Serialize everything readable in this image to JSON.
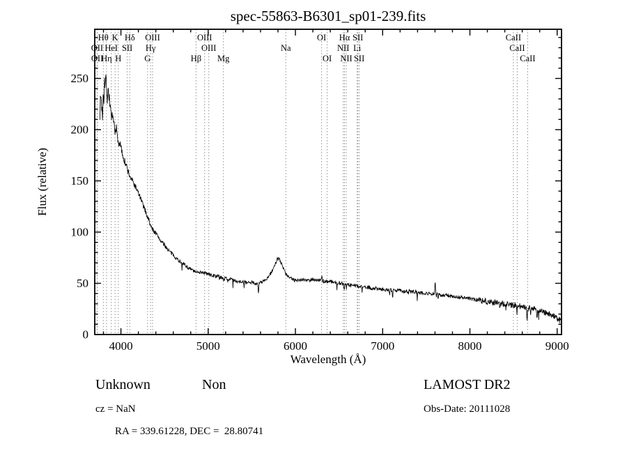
{
  "title": "spec-55863-B6301_sp01-239.fits",
  "chart_data": {
    "type": "line",
    "title": "spec-55863-B6301_sp01-239.fits",
    "xlabel": "Wavelength (Å)",
    "ylabel": "Flux (relative)",
    "xlim": [
      3700,
      9050
    ],
    "ylim": [
      0,
      298
    ],
    "xticks": [
      4000,
      5000,
      6000,
      7000,
      8000,
      9000
    ],
    "yticks": [
      0,
      50,
      100,
      150,
      200,
      250
    ],
    "x_minor_step": 200,
    "y_minor_step": 10,
    "grid": "dotted vertical lines at spectral-line wavelengths",
    "legend": "none",
    "line_color": "#000000",
    "gridline_color": "#8a8a8a",
    "series": [
      {
        "name": "spectrum",
        "envelope": [
          [
            3760,
            218
          ],
          [
            3770,
            235
          ],
          [
            3780,
            222
          ],
          [
            3790,
            212
          ],
          [
            3797,
            242
          ],
          [
            3805,
            228
          ],
          [
            3812,
            250
          ],
          [
            3820,
            244
          ],
          [
            3828,
            252
          ],
          [
            3836,
            238
          ],
          [
            3845,
            230
          ],
          [
            3852,
            240
          ],
          [
            3860,
            236
          ],
          [
            3870,
            228
          ],
          [
            3880,
            222
          ],
          [
            3890,
            214
          ],
          [
            3900,
            212
          ],
          [
            3910,
            208
          ],
          [
            3920,
            206
          ],
          [
            3933,
            195
          ],
          [
            3942,
            203
          ],
          [
            3950,
            200
          ],
          [
            3960,
            192
          ],
          [
            3970,
            186
          ],
          [
            3985,
            188
          ],
          [
            4000,
            182
          ],
          [
            4025,
            174
          ],
          [
            4050,
            167
          ],
          [
            4075,
            161
          ],
          [
            4100,
            155
          ],
          [
            4125,
            151
          ],
          [
            4150,
            147
          ],
          [
            4175,
            143
          ],
          [
            4200,
            138
          ],
          [
            4225,
            133
          ],
          [
            4250,
            127
          ],
          [
            4275,
            122
          ],
          [
            4300,
            116
          ],
          [
            4320,
            112
          ],
          [
            4340,
            106
          ],
          [
            4360,
            103
          ],
          [
            4380,
            101
          ],
          [
            4400,
            99
          ],
          [
            4430,
            95
          ],
          [
            4460,
            91
          ],
          [
            4490,
            88
          ],
          [
            4520,
            85
          ],
          [
            4550,
            82
          ],
          [
            4580,
            79
          ],
          [
            4610,
            77
          ],
          [
            4640,
            74
          ],
          [
            4670,
            72
          ],
          [
            4700,
            70
          ],
          [
            4730,
            68
          ],
          [
            4760,
            66
          ],
          [
            4790,
            64
          ],
          [
            4820,
            63
          ],
          [
            4861,
            60
          ],
          [
            4880,
            62
          ],
          [
            4900,
            61
          ],
          [
            4930,
            61
          ],
          [
            4960,
            60
          ],
          [
            5000,
            59
          ],
          [
            5040,
            58
          ],
          [
            5080,
            57
          ],
          [
            5120,
            57
          ],
          [
            5160,
            55
          ],
          [
            5175,
            54
          ],
          [
            5210,
            55
          ],
          [
            5250,
            54
          ],
          [
            5290,
            53
          ],
          [
            5330,
            52
          ],
          [
            5370,
            52
          ],
          [
            5410,
            51
          ],
          [
            5450,
            50
          ],
          [
            5490,
            51
          ],
          [
            5530,
            50
          ],
          [
            5570,
            50
          ],
          [
            5610,
            51
          ],
          [
            5650,
            53
          ],
          [
            5690,
            56
          ],
          [
            5720,
            60
          ],
          [
            5750,
            65
          ],
          [
            5775,
            70
          ],
          [
            5795,
            74
          ],
          [
            5810,
            74
          ],
          [
            5830,
            71
          ],
          [
            5850,
            67
          ],
          [
            5870,
            63
          ],
          [
            5890,
            59
          ],
          [
            5910,
            57
          ],
          [
            5940,
            55
          ],
          [
            5970,
            54
          ],
          [
            6000,
            54
          ],
          [
            6040,
            53
          ],
          [
            6080,
            54
          ],
          [
            6120,
            53
          ],
          [
            6160,
            53
          ],
          [
            6200,
            54
          ],
          [
            6240,
            53
          ],
          [
            6280,
            53
          ],
          [
            6320,
            52
          ],
          [
            6360,
            52
          ],
          [
            6400,
            52
          ],
          [
            6440,
            51
          ],
          [
            6480,
            51
          ],
          [
            6520,
            50
          ],
          [
            6560,
            49
          ],
          [
            6600,
            49
          ],
          [
            6640,
            48
          ],
          [
            6680,
            48
          ],
          [
            6720,
            47
          ],
          [
            6760,
            47
          ],
          [
            6800,
            46
          ],
          [
            6840,
            46
          ],
          [
            6880,
            45
          ],
          [
            6920,
            45
          ],
          [
            6960,
            45
          ],
          [
            7000,
            44
          ],
          [
            7050,
            44
          ],
          [
            7100,
            43
          ],
          [
            7150,
            43
          ],
          [
            7200,
            43
          ],
          [
            7250,
            42
          ],
          [
            7300,
            42
          ],
          [
            7350,
            42
          ],
          [
            7400,
            41
          ],
          [
            7450,
            41
          ],
          [
            7500,
            40
          ],
          [
            7550,
            40
          ],
          [
            7600,
            40
          ],
          [
            7650,
            39
          ],
          [
            7700,
            38
          ],
          [
            7750,
            38
          ],
          [
            7800,
            37
          ],
          [
            7850,
            37
          ],
          [
            7900,
            36
          ],
          [
            7950,
            36
          ],
          [
            8000,
            35
          ],
          [
            8050,
            34
          ],
          [
            8100,
            34
          ],
          [
            8150,
            33
          ],
          [
            8200,
            32
          ],
          [
            8250,
            32
          ],
          [
            8300,
            31
          ],
          [
            8350,
            31
          ],
          [
            8400,
            30
          ],
          [
            8450,
            29
          ],
          [
            8500,
            29
          ],
          [
            8550,
            28
          ],
          [
            8600,
            27
          ],
          [
            8650,
            26
          ],
          [
            8700,
            26
          ],
          [
            8750,
            25
          ],
          [
            8800,
            23
          ],
          [
            8850,
            22
          ],
          [
            8900,
            20
          ],
          [
            8950,
            19
          ],
          [
            9000,
            16
          ],
          [
            9030,
            14
          ],
          [
            9050,
            12
          ]
        ],
        "spikes": [
          {
            "x": 5577,
            "dy": -13
          },
          {
            "x": 6302,
            "dy": 6
          },
          {
            "x": 6560,
            "dy": -7
          },
          {
            "x": 7080,
            "dy": -6
          },
          {
            "x": 7602,
            "dy": 14
          },
          {
            "x": 7635,
            "dy": -7
          },
          {
            "x": 8345,
            "dy": -7
          },
          {
            "x": 8540,
            "dy": -8
          },
          {
            "x": 8655,
            "dy": -11
          },
          {
            "x": 8695,
            "dy": -9
          },
          {
            "x": 8770,
            "dy": -8
          }
        ],
        "noise": {
          "base": 1.8,
          "blue_boost": 3.8,
          "blue_scale": 230,
          "red_boost": 1.2,
          "dropout_prob": 0.02,
          "dropout_max": 9
        }
      }
    ],
    "line_markers": [
      {
        "label": "Hθ",
        "wavelength": 3798,
        "row": 0
      },
      {
        "label": "K",
        "wavelength": 3933,
        "row": 0
      },
      {
        "label": "Hδ",
        "wavelength": 4102,
        "row": 0
      },
      {
        "label": "OIII",
        "wavelength": 4363,
        "row": 0
      },
      {
        "label": "OIII",
        "wavelength": 4959,
        "row": 0
      },
      {
        "label": "OI",
        "wavelength": 6300,
        "row": 0
      },
      {
        "label": "Hα",
        "wavelength": 6563,
        "row": 0
      },
      {
        "label": "SII",
        "wavelength": 6716,
        "row": 0
      },
      {
        "label": "CaII",
        "wavelength": 8498,
        "row": 0
      },
      {
        "label": "OII",
        "wavelength": 3727,
        "row": 1
      },
      {
        "label": "HeI",
        "wavelength": 3889,
        "row": 1
      },
      {
        "label": "SII",
        "wavelength": 4072,
        "row": 1
      },
      {
        "label": "Hγ",
        "wavelength": 4340,
        "row": 1
      },
      {
        "label": "OIII",
        "wavelength": 5007,
        "row": 1
      },
      {
        "label": "Na",
        "wavelength": 5890,
        "row": 1
      },
      {
        "label": "NII",
        "wavelength": 6548,
        "row": 1
      },
      {
        "label": "Li",
        "wavelength": 6708,
        "row": 1
      },
      {
        "label": "CaII",
        "wavelength": 8542,
        "row": 1
      },
      {
        "label": "OII",
        "wavelength": 3729,
        "row": 2
      },
      {
        "label": "Hη",
        "wavelength": 3835,
        "row": 2
      },
      {
        "label": "H",
        "wavelength": 3970,
        "row": 2
      },
      {
        "label": "G",
        "wavelength": 4305,
        "row": 2
      },
      {
        "label": "Hβ",
        "wavelength": 4861,
        "row": 2
      },
      {
        "label": "Mg",
        "wavelength": 5175,
        "row": 2
      },
      {
        "label": "OI",
        "wavelength": 6364,
        "row": 2
      },
      {
        "label": "NII",
        "wavelength": 6583,
        "row": 2
      },
      {
        "label": "SII",
        "wavelength": 6731,
        "row": 2
      },
      {
        "label": "CaII",
        "wavelength": 8662,
        "row": 2
      }
    ]
  },
  "footer": {
    "classification": "Unknown",
    "subclass": "Non",
    "survey": "LAMOST DR2",
    "cz": "cz = NaN",
    "obs_date": "Obs-Date: 20111028",
    "coords": "RA = 339.61228, DEC =  28.80741"
  }
}
